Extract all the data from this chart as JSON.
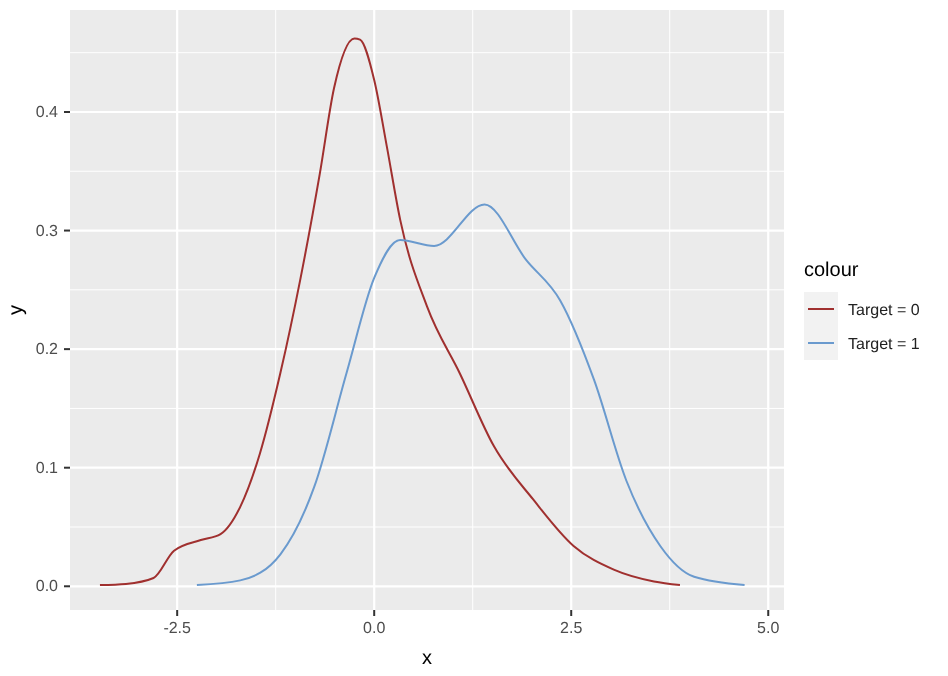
{
  "chart_data": {
    "type": "line",
    "xlabel": "x",
    "ylabel": "y",
    "legend_title": "colour",
    "legend": "right",
    "grid": true,
    "xlim": [
      -3.86,
      5.2
    ],
    "ylim": [
      -0.02,
      0.486
    ],
    "xticks": [
      {
        "value": -2.5,
        "label": "-2.5"
      },
      {
        "value": 0,
        "label": "0.0"
      },
      {
        "value": 2.5,
        "label": "2.5"
      },
      {
        "value": 5,
        "label": "5.0"
      }
    ],
    "yticks": [
      {
        "value": 0,
        "label": "0.0"
      },
      {
        "value": 0.1,
        "label": "0.1"
      },
      {
        "value": 0.2,
        "label": "0.2"
      },
      {
        "value": 0.3,
        "label": "0.3"
      },
      {
        "value": 0.4,
        "label": "0.4"
      }
    ],
    "series": [
      {
        "name": "Target = 0",
        "color": "#a0302f",
        "x": [
          -3.48,
          -3.15,
          -2.8,
          -2.54,
          -2.2,
          -1.95,
          -1.7,
          -1.45,
          -1.19,
          -0.94,
          -0.69,
          -0.51,
          -0.25,
          -0.18,
          0,
          0.16,
          0.33,
          0.67,
          1.09,
          1.52,
          2.02,
          2.53,
          3.04,
          3.55,
          3.88
        ],
        "values": [
          0.001,
          0.002,
          0.007,
          0.03,
          0.039,
          0.044,
          0.067,
          0.112,
          0.18,
          0.258,
          0.348,
          0.42,
          0.462,
          0.461,
          0.427,
          0.371,
          0.309,
          0.236,
          0.179,
          0.118,
          0.073,
          0.034,
          0.014,
          0.004,
          0.001
        ]
      },
      {
        "name": "Target = 1",
        "color": "#6a9ace",
        "x": [
          -2.25,
          -1.7,
          -1.19,
          -0.76,
          -0.35,
          0,
          0.33,
          0.76,
          1.4,
          1.93,
          2.36,
          2.79,
          3.2,
          3.63,
          4.06,
          4.7
        ],
        "values": [
          0.001,
          0.005,
          0.027,
          0.084,
          0.18,
          0.26,
          0.292,
          0.287,
          0.322,
          0.275,
          0.241,
          0.174,
          0.089,
          0.034,
          0.008,
          0.001
        ]
      }
    ]
  }
}
